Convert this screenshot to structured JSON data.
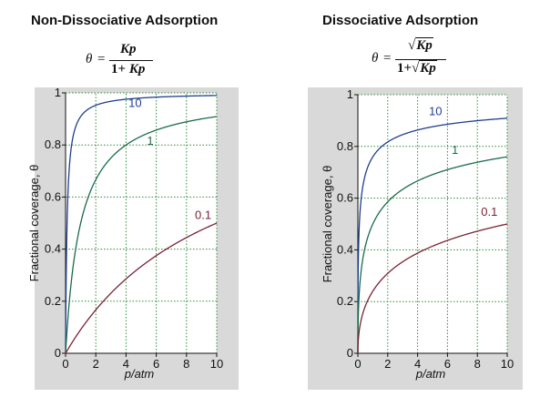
{
  "panels": [
    {
      "title": "Non-Dissociative Adsorption",
      "formula": {
        "lhs": "θ",
        "eq": "=",
        "numerator": "Kp",
        "denominator_prefix": "1+ ",
        "denominator": "Kp"
      }
    },
    {
      "title": "Dissociative Adsorption",
      "formula": {
        "lhs": "θ",
        "eq": "=",
        "numerator_sqrt": "√",
        "numerator": "Kp",
        "denominator_prefix": "1+",
        "denominator_sqrt": "√",
        "denominator": "Kp"
      }
    }
  ],
  "chart_data": [
    {
      "type": "line",
      "title": "Non-Dissociative Adsorption",
      "model": "langmuir",
      "xlabel": "p/atm",
      "ylabel": "Fractional coverage, θ",
      "xlim": [
        0,
        10
      ],
      "ylim": [
        0,
        1
      ],
      "xticks": [
        "0",
        "2",
        "4",
        "6",
        "8",
        "10"
      ],
      "yticks": [
        "0",
        "0.2",
        "0.4",
        "0.6",
        "0.8",
        "1"
      ],
      "grid": true,
      "series": [
        {
          "name": "10",
          "K": 10,
          "color": "#1f3f8f",
          "label_at": [
            4.6,
            0.96
          ],
          "x": [
            0,
            0.1,
            0.2,
            0.3,
            0.5,
            1,
            2,
            4,
            6,
            8,
            10
          ],
          "y": [
            0,
            0.5,
            0.667,
            0.75,
            0.833,
            0.909,
            0.952,
            0.976,
            0.984,
            0.988,
            0.99
          ]
        },
        {
          "name": "1",
          "K": 1,
          "color": "#1a6b4a",
          "label_at": [
            5.6,
            0.815
          ],
          "x": [
            0,
            0.5,
            1,
            2,
            4,
            6,
            8,
            10
          ],
          "y": [
            0,
            0.333,
            0.5,
            0.667,
            0.8,
            0.857,
            0.889,
            0.909
          ]
        },
        {
          "name": "0.1",
          "K": 0.1,
          "color": "#7a2233",
          "label_at": [
            9.1,
            0.53
          ],
          "x": [
            0,
            1,
            2,
            4,
            6,
            8,
            10
          ],
          "y": [
            0,
            0.091,
            0.167,
            0.286,
            0.375,
            0.444,
            0.5
          ]
        }
      ]
    },
    {
      "type": "line",
      "title": "Dissociative Adsorption",
      "model": "dissociative",
      "xlabel": "p/atm",
      "ylabel": "Fractional coverage, θ",
      "xlim": [
        0,
        10
      ],
      "ylim": [
        0,
        1
      ],
      "xticks": [
        "0",
        "2",
        "4",
        "6",
        "8",
        "10"
      ],
      "yticks": [
        "0",
        "0.2",
        "0.4",
        "0.6",
        "0.8",
        "1"
      ],
      "grid": true,
      "series": [
        {
          "name": "10",
          "K": 10,
          "color": "#1f3f8f",
          "label_at": [
            5.2,
            0.935
          ],
          "x": [
            0,
            0.1,
            0.5,
            1,
            2,
            4,
            6,
            8,
            10
          ],
          "y": [
            0,
            0.5,
            0.691,
            0.76,
            0.817,
            0.863,
            0.886,
            0.899,
            0.909
          ]
        },
        {
          "name": "1",
          "K": 1,
          "color": "#1a6b4a",
          "label_at": [
            6.5,
            0.785
          ],
          "x": [
            0,
            0.25,
            1,
            2,
            4,
            6,
            8,
            10
          ],
          "y": [
            0,
            0.333,
            0.5,
            0.586,
            0.667,
            0.71,
            0.739,
            0.76
          ]
        },
        {
          "name": "0.1",
          "K": 0.1,
          "color": "#7a2233",
          "label_at": [
            8.8,
            0.545
          ],
          "x": [
            0,
            1,
            2,
            4,
            6,
            8,
            10
          ],
          "y": [
            0,
            0.24,
            0.309,
            0.387,
            0.436,
            0.472,
            0.5
          ]
        }
      ]
    }
  ]
}
